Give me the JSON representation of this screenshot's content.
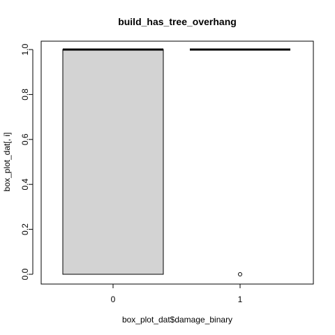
{
  "chart_data": {
    "type": "box",
    "title": "build_has_tree_overhang",
    "xlabel": "box_plot_dat$damage_binary",
    "ylabel": "box_plot_dat[, i]",
    "categories": [
      "0",
      "1"
    ],
    "boxes": [
      {
        "category": "0",
        "min": 0,
        "q1": 0,
        "median": 1,
        "q3": 1,
        "max": 1,
        "outliers": [],
        "fill": "#d3d3d3"
      },
      {
        "category": "1",
        "min": 1,
        "q1": 1,
        "median": 1,
        "q3": 1,
        "max": 1,
        "outliers": [
          0
        ],
        "fill": "#d3d3d3"
      }
    ],
    "ylim": [
      0,
      1
    ],
    "yticks": [
      0,
      0.2,
      0.4,
      0.6,
      0.8,
      1
    ],
    "ytick_labels": [
      "0.0",
      "0.2",
      "0.4",
      "0.6",
      "0.8",
      "1.0"
    ],
    "grid": false,
    "legend": null
  }
}
